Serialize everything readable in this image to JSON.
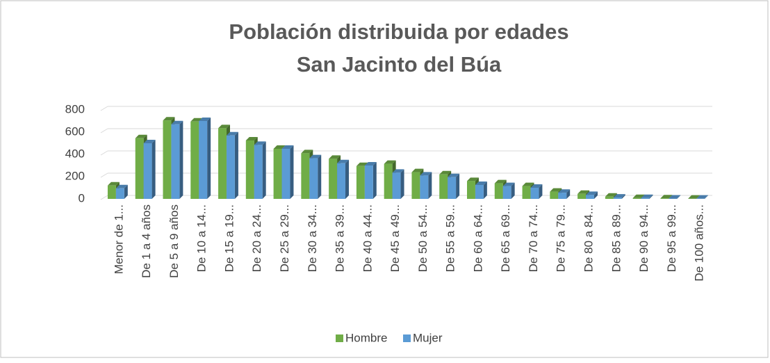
{
  "chart_data": {
    "type": "bar3d",
    "title": "Población distribuida por edades",
    "subtitle": "San Jacinto del Búa",
    "categories": [
      "Menor de 1...",
      "De 1 a 4 años",
      "De 5 a 9 años",
      "De 10 a 14...",
      "De 15 a 19...",
      "De 20 a 24...",
      "De 25 a 29...",
      "De 30 a 34...",
      "De 35 a 39...",
      "De 40 a 44...",
      "De 45 a 49...",
      "De 50 a 54...",
      "De 55 a 59...",
      "De 60 a 64...",
      "De 65 a 69...",
      "De 70 a 74...",
      "De 75 a 79...",
      "De 80 a 84...",
      "De 85 a 89...",
      "De 90 a 94...",
      "De 95 a 99...",
      "De 100 años..."
    ],
    "series": [
      {
        "name": "Hombre",
        "color": "#70ad47",
        "values": [
          120,
          545,
          705,
          695,
          635,
          525,
          450,
          410,
          360,
          295,
          315,
          240,
          220,
          160,
          140,
          115,
          65,
          45,
          20,
          8,
          5,
          2
        ]
      },
      {
        "name": "Mujer",
        "color": "#5b9bd5",
        "values": [
          95,
          500,
          670,
          700,
          570,
          485,
          450,
          365,
          320,
          300,
          235,
          210,
          195,
          125,
          115,
          100,
          55,
          35,
          12,
          8,
          3,
          2
        ]
      }
    ],
    "ylim": [
      0,
      800
    ],
    "yticks": [
      0,
      200,
      400,
      600,
      800
    ],
    "grid": true,
    "legend": "bottom"
  }
}
